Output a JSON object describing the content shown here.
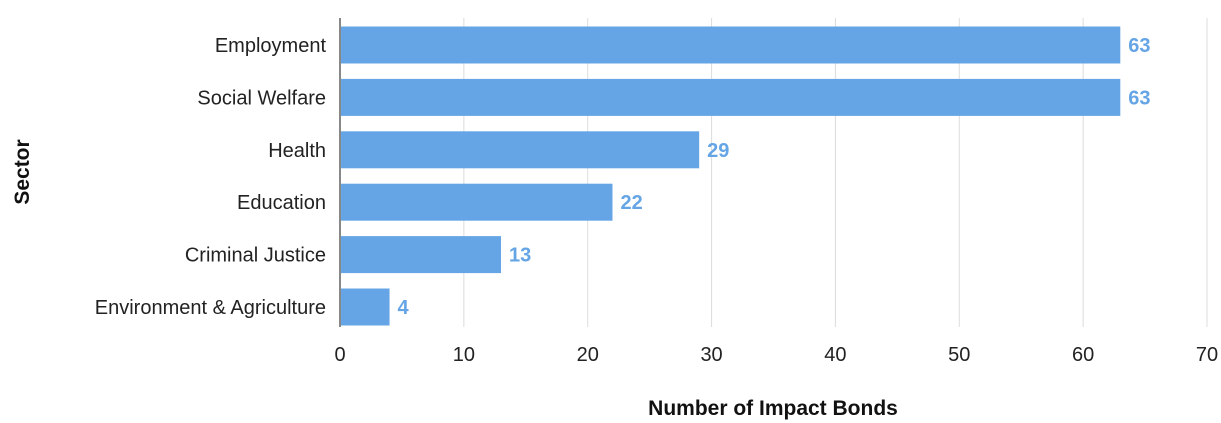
{
  "chart_data": {
    "type": "bar",
    "orientation": "horizontal",
    "categories": [
      "Employment",
      "Social Welfare",
      "Health",
      "Education",
      "Criminal Justice",
      "Environment & Agriculture"
    ],
    "values": [
      63,
      63,
      29,
      22,
      13,
      4
    ],
    "xlabel": "Number of Impact Bonds",
    "ylabel": "Sector",
    "xlim": [
      0,
      70
    ],
    "xticks": [
      0,
      10,
      20,
      30,
      40,
      50,
      60,
      70
    ],
    "grid": "vertical",
    "bar_color": "#65a5e5",
    "data_label_color": "#65a5e5"
  }
}
